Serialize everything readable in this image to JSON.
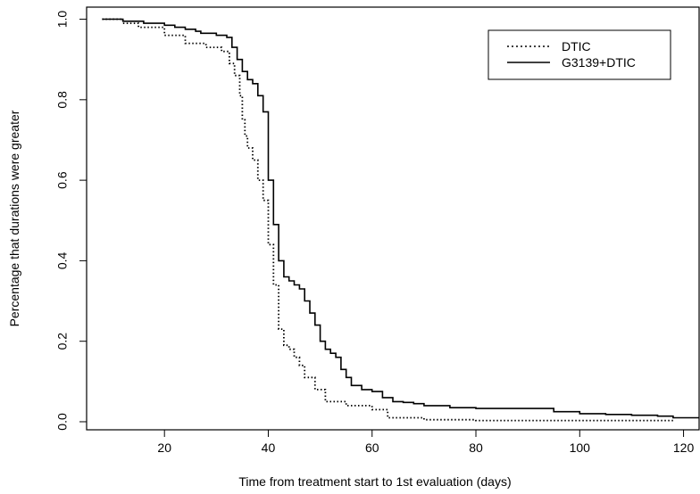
{
  "chart_data": {
    "type": "line",
    "title": "",
    "xlabel": "Time from treatment start to 1st evaluation (days)",
    "ylabel": "Percentage that durations were greater",
    "xlim": [
      5,
      123
    ],
    "ylim": [
      -0.02,
      1.03
    ],
    "x_ticks": [
      20,
      40,
      60,
      80,
      100,
      120
    ],
    "y_ticks": [
      0.0,
      0.2,
      0.4,
      0.6,
      0.8,
      1.0
    ],
    "x_tick_labels": [
      "20",
      "40",
      "60",
      "80",
      "100",
      "120"
    ],
    "y_tick_labels": [
      "0.0",
      "0.2",
      "0.4",
      "0.6",
      "0.8",
      "1.0"
    ],
    "grid": false,
    "legend_position": "top-right",
    "series": [
      {
        "name": "DTIC",
        "style": "dotted",
        "color": "#000000",
        "x": [
          8.0,
          12.0,
          15.0,
          20.0,
          24.0,
          28.0,
          31.0,
          32.5,
          33.5,
          34.5,
          35.0,
          35.5,
          36.0,
          37.0,
          38.0,
          39.0,
          40.0,
          41.0,
          42.0,
          43.0,
          44.0,
          45.0,
          46.0,
          47.0,
          49.0,
          51.0,
          55.0,
          60.0,
          63.0,
          66.0,
          70.0,
          80.0,
          90.0,
          100.0,
          110.0,
          118.0
        ],
        "y": [
          1.0,
          0.99,
          0.98,
          0.96,
          0.94,
          0.93,
          0.92,
          0.89,
          0.86,
          0.81,
          0.75,
          0.71,
          0.68,
          0.65,
          0.6,
          0.55,
          0.44,
          0.34,
          0.23,
          0.19,
          0.18,
          0.16,
          0.14,
          0.11,
          0.08,
          0.05,
          0.04,
          0.03,
          0.01,
          0.01,
          0.005,
          0.003,
          0.003,
          0.003,
          0.003,
          0.0
        ]
      },
      {
        "name": "G3139+DTIC",
        "style": "solid",
        "color": "#000000",
        "x": [
          8.0,
          12.0,
          16.0,
          20.0,
          22.0,
          24.0,
          26.0,
          27.0,
          30.0,
          31.0,
          32.0,
          33.0,
          34.0,
          35.0,
          36.0,
          37.0,
          38.0,
          39.0,
          40.0,
          41.0,
          42.0,
          43.0,
          44.0,
          45.0,
          46.0,
          47.0,
          48.0,
          49.0,
          50.0,
          51.0,
          52.0,
          53.0,
          54.0,
          55.0,
          56.0,
          58.0,
          60.0,
          62.0,
          64.0,
          66.0,
          68.0,
          70.0,
          75.0,
          80.0,
          85.0,
          90.0,
          94.0,
          95.0,
          100.0,
          105.0,
          110.0,
          115.0,
          118.0,
          123.0
        ],
        "y": [
          1.0,
          0.995,
          0.99,
          0.985,
          0.98,
          0.975,
          0.97,
          0.965,
          0.96,
          0.96,
          0.955,
          0.93,
          0.9,
          0.87,
          0.85,
          0.84,
          0.81,
          0.77,
          0.6,
          0.49,
          0.4,
          0.36,
          0.35,
          0.34,
          0.33,
          0.3,
          0.27,
          0.24,
          0.2,
          0.18,
          0.17,
          0.16,
          0.13,
          0.11,
          0.09,
          0.08,
          0.075,
          0.06,
          0.05,
          0.048,
          0.045,
          0.04,
          0.035,
          0.033,
          0.033,
          0.033,
          0.033,
          0.025,
          0.02,
          0.018,
          0.016,
          0.014,
          0.01,
          0.01
        ]
      }
    ]
  }
}
